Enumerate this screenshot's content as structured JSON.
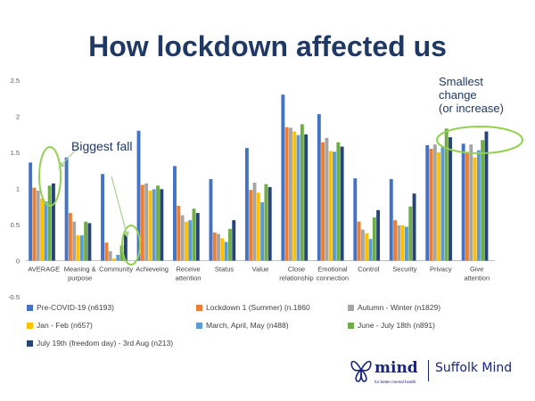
{
  "title": "How lockdown affected us",
  "annotations": {
    "biggest_fall": "Biggest fall",
    "smallest_change": [
      "Smallest",
      "change",
      "(or increase)"
    ]
  },
  "brand": {
    "logo_text": "mind",
    "tagline": "for better mental health",
    "org": "Suffolk Mind"
  },
  "chart_data": {
    "type": "bar",
    "title": "How lockdown affected us",
    "xlabel": "",
    "ylabel": "",
    "ylim": [
      -0.5,
      2.5
    ],
    "yticks": [
      "-0.5",
      "0",
      "0.5",
      "1",
      "1.5",
      "2",
      "2.5"
    ],
    "grid": false,
    "legend_position": "bottom",
    "categories": [
      "AVERAGE",
      "Meaning & purpose",
      "Community",
      "Achieveing",
      "Receive attention",
      "Status",
      "Value",
      "Close relationship",
      "Emotional connection",
      "Control",
      "Security",
      "Privacy",
      "Give attention"
    ],
    "category_labels": [
      [
        "AVERAGE"
      ],
      [
        "Meaning &",
        "purpose"
      ],
      [
        "Community"
      ],
      [
        "Achieveing"
      ],
      [
        "Receive",
        "attention"
      ],
      [
        "Status"
      ],
      [
        "Value"
      ],
      [
        "Close",
        "relationship"
      ],
      [
        "Emotional",
        "connection"
      ],
      [
        "Control"
      ],
      [
        "Security"
      ],
      [
        "Privacy"
      ],
      [
        "Give",
        "attention"
      ]
    ],
    "series": [
      {
        "name": "Pre-COVID-19 (n6193)",
        "color": "#4472c4",
        "values": [
          1.36,
          1.43,
          1.2,
          1.8,
          1.31,
          1.13,
          1.56,
          2.3,
          2.03,
          1.14,
          1.13,
          1.6,
          1.62
        ]
      },
      {
        "name": "Lockdown 1 (Summer) (n.1860",
        "color": "#ed7d31",
        "values": [
          1.01,
          0.66,
          0.25,
          1.05,
          0.76,
          0.39,
          0.98,
          1.85,
          1.64,
          0.54,
          0.56,
          1.55,
          1.5
        ]
      },
      {
        "name": "Autumn - Winter (n1829)",
        "color": "#a5a5a5",
        "values": [
          0.97,
          0.54,
          0.13,
          1.07,
          0.63,
          0.37,
          1.08,
          1.84,
          1.7,
          0.43,
          0.49,
          1.61,
          1.61
        ]
      },
      {
        "name": "Jan - Feb (n657)",
        "color": "#ffc000",
        "values": [
          0.86,
          0.35,
          0.03,
          0.97,
          0.54,
          0.31,
          0.94,
          1.79,
          1.52,
          0.38,
          0.49,
          1.5,
          1.43
        ]
      },
      {
        "name": "March, April, May (n488)",
        "color": "#5b9bd5",
        "values": [
          0.82,
          0.35,
          0.08,
          0.99,
          0.56,
          0.26,
          0.81,
          1.74,
          1.51,
          0.3,
          0.47,
          1.57,
          1.53
        ]
      },
      {
        "name": "June - July 18th (n891)",
        "color": "#70ad47",
        "values": [
          1.04,
          0.54,
          0.21,
          1.04,
          0.72,
          0.44,
          1.06,
          1.89,
          1.64,
          0.6,
          0.75,
          1.83,
          1.67
        ]
      },
      {
        "name": "July 19th (freedom day) - 3rd Aug (n213)",
        "color": "#264478",
        "values": [
          1.07,
          0.52,
          0.4,
          0.99,
          0.66,
          0.56,
          1.02,
          1.75,
          1.58,
          0.7,
          0.93,
          1.71,
          1.79
        ]
      }
    ]
  }
}
